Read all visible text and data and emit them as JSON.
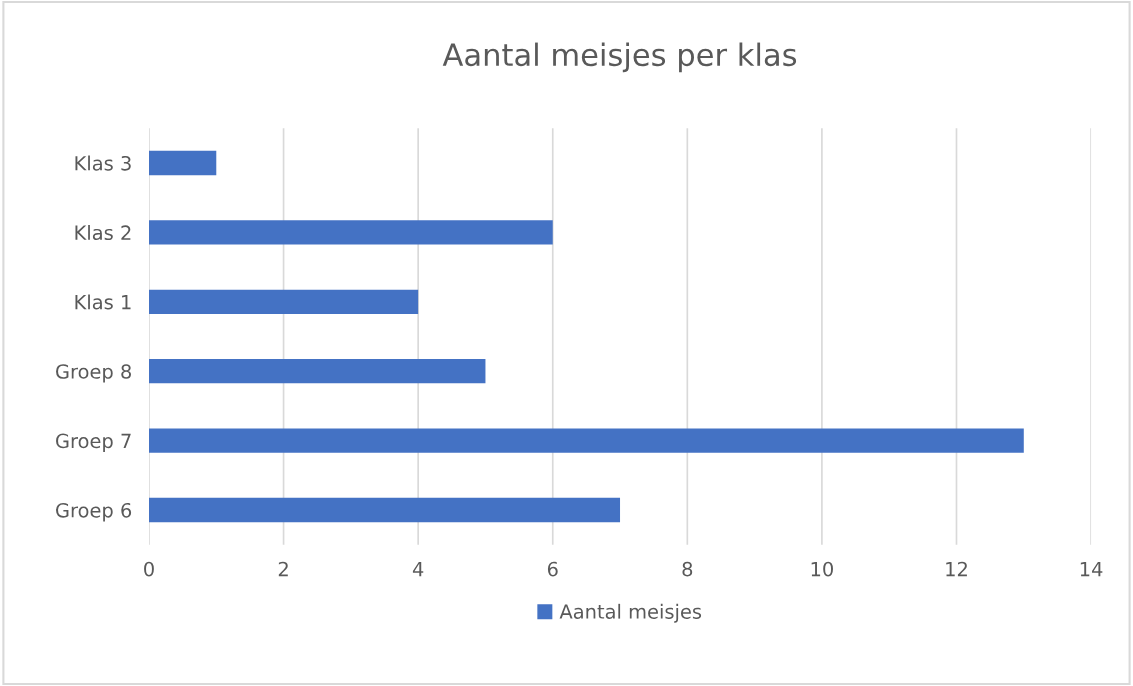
{
  "chart_data": {
    "type": "bar",
    "orientation": "horizontal",
    "title": "Aantal meisjes per klas",
    "categories": [
      "Klas 3",
      "Klas 2",
      "Klas 1",
      "Groep 8",
      "Groep 7",
      "Groep 6"
    ],
    "series": [
      {
        "name": "Aantal meisjes",
        "color": "#4472c4",
        "values": [
          1,
          6,
          4,
          5,
          13,
          7
        ]
      }
    ],
    "xlim": [
      0,
      14
    ],
    "xticks": [
      0,
      2,
      4,
      6,
      8,
      10,
      12,
      14
    ],
    "grid": "x",
    "legend": "bottom"
  }
}
